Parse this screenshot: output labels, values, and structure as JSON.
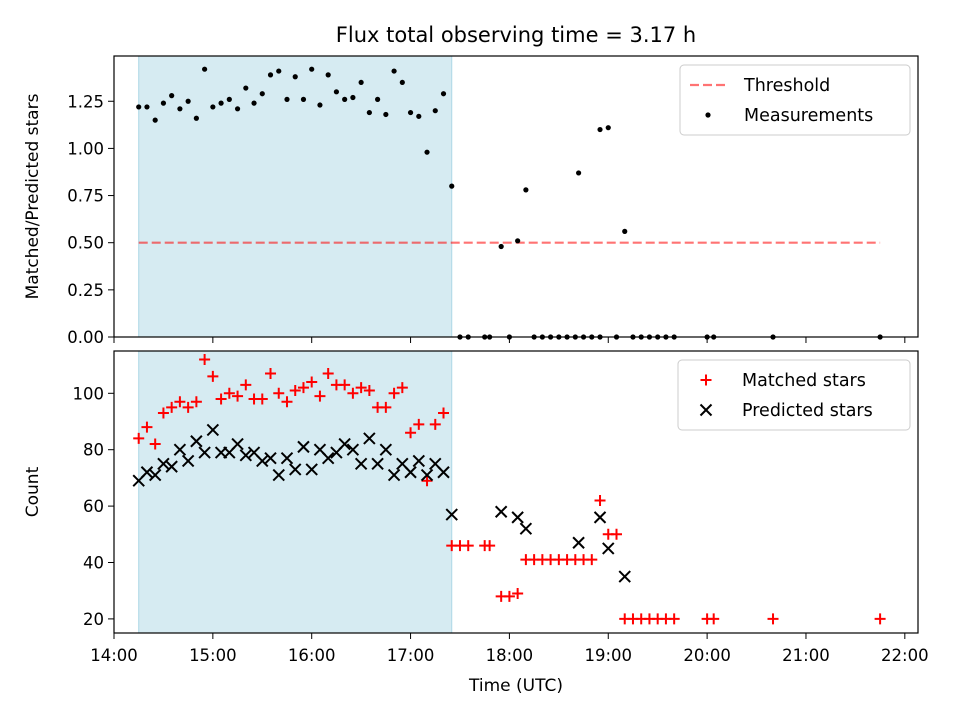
{
  "title": "Flux total observing time = 3.17 h",
  "colors": {
    "shade": "#add8e6",
    "threshold": "#ff0000",
    "matched": "#ff0000",
    "predicted": "#000000",
    "measurements": "#000000"
  },
  "chart_data": [
    {
      "type": "scatter",
      "panel": "top",
      "ylabel": "Matched/Predicted stars",
      "xlim": [
        "14:00",
        "22:08"
      ],
      "ylim": [
        0,
        1.49
      ],
      "yticks": [
        "0.00",
        "0.25",
        "0.50",
        "0.75",
        "1.00",
        "1.25"
      ],
      "grid": false,
      "legend_position": "upper right",
      "shaded_span": {
        "x_from": "14:15",
        "x_to": "17:25"
      },
      "threshold": {
        "name": "Threshold",
        "y": 0.5,
        "x_from": "14:15",
        "x_to": "21:45",
        "style": "dashed"
      },
      "series": [
        {
          "name": "Measurements",
          "marker": "dot",
          "points": [
            [
              "14:15",
              1.22
            ],
            [
              "14:20",
              1.22
            ],
            [
              "14:25",
              1.15
            ],
            [
              "14:30",
              1.24
            ],
            [
              "14:35",
              1.28
            ],
            [
              "14:40",
              1.21
            ],
            [
              "14:45",
              1.25
            ],
            [
              "14:50",
              1.16
            ],
            [
              "14:55",
              1.42
            ],
            [
              "15:00",
              1.22
            ],
            [
              "15:05",
              1.24
            ],
            [
              "15:10",
              1.26
            ],
            [
              "15:15",
              1.21
            ],
            [
              "15:20",
              1.32
            ],
            [
              "15:25",
              1.24
            ],
            [
              "15:30",
              1.29
            ],
            [
              "15:35",
              1.39
            ],
            [
              "15:40",
              1.41
            ],
            [
              "15:45",
              1.26
            ],
            [
              "15:50",
              1.38
            ],
            [
              "15:55",
              1.26
            ],
            [
              "16:00",
              1.42
            ],
            [
              "16:05",
              1.23
            ],
            [
              "16:10",
              1.39
            ],
            [
              "16:15",
              1.3
            ],
            [
              "16:20",
              1.26
            ],
            [
              "16:25",
              1.27
            ],
            [
              "16:30",
              1.35
            ],
            [
              "16:35",
              1.19
            ],
            [
              "16:40",
              1.26
            ],
            [
              "16:45",
              1.18
            ],
            [
              "16:50",
              1.41
            ],
            [
              "16:55",
              1.35
            ],
            [
              "17:00",
              1.19
            ],
            [
              "17:05",
              1.17
            ],
            [
              "17:10",
              0.98
            ],
            [
              "17:15",
              1.2
            ],
            [
              "17:20",
              1.29
            ],
            [
              "17:25",
              0.8
            ],
            [
              "17:30",
              0.0
            ],
            [
              "17:35",
              0.0
            ],
            [
              "17:45",
              0.0
            ],
            [
              "17:48",
              0.0
            ],
            [
              "17:55",
              0.48
            ],
            [
              "18:00",
              0.0
            ],
            [
              "18:05",
              0.51
            ],
            [
              "18:10",
              0.78
            ],
            [
              "18:15",
              0.0
            ],
            [
              "18:20",
              0.0
            ],
            [
              "18:25",
              0.0
            ],
            [
              "18:30",
              0.0
            ],
            [
              "18:35",
              0.0
            ],
            [
              "18:40",
              0.0
            ],
            [
              "18:42",
              0.87
            ],
            [
              "18:45",
              0.0
            ],
            [
              "18:50",
              0.0
            ],
            [
              "18:55",
              0.0
            ],
            [
              "18:55",
              1.1
            ],
            [
              "19:00",
              1.11
            ],
            [
              "19:05",
              0.0
            ],
            [
              "19:10",
              0.56
            ],
            [
              "19:15",
              0.0
            ],
            [
              "19:20",
              0.0
            ],
            [
              "19:25",
              0.0
            ],
            [
              "19:30",
              0.0
            ],
            [
              "19:35",
              0.0
            ],
            [
              "19:40",
              0.0
            ],
            [
              "20:00",
              0.0
            ],
            [
              "20:04",
              0.0
            ],
            [
              "20:40",
              0.0
            ],
            [
              "21:45",
              0.0
            ]
          ]
        }
      ]
    },
    {
      "type": "scatter",
      "panel": "bottom",
      "xlabel": "Time (UTC)",
      "ylabel": "Count",
      "xlim": [
        "14:00",
        "22:08"
      ],
      "ylim": [
        15,
        115
      ],
      "xticks": [
        "14:00",
        "15:00",
        "16:00",
        "17:00",
        "18:00",
        "19:00",
        "20:00",
        "21:00",
        "22:00"
      ],
      "yticks": [
        "20",
        "40",
        "60",
        "80",
        "100"
      ],
      "grid": false,
      "legend_position": "upper right",
      "shaded_span": {
        "x_from": "14:15",
        "x_to": "17:25"
      },
      "series": [
        {
          "name": "Matched stars",
          "marker": "plus",
          "points": [
            [
              "14:15",
              84
            ],
            [
              "14:20",
              88
            ],
            [
              "14:25",
              82
            ],
            [
              "14:30",
              93
            ],
            [
              "14:35",
              95
            ],
            [
              "14:40",
              97
            ],
            [
              "14:45",
              95
            ],
            [
              "14:50",
              97
            ],
            [
              "14:55",
              112
            ],
            [
              "15:00",
              106
            ],
            [
              "15:05",
              98
            ],
            [
              "15:10",
              100
            ],
            [
              "15:15",
              99
            ],
            [
              "15:20",
              103
            ],
            [
              "15:25",
              98
            ],
            [
              "15:30",
              98
            ],
            [
              "15:35",
              107
            ],
            [
              "15:40",
              100
            ],
            [
              "15:45",
              97
            ],
            [
              "15:50",
              101
            ],
            [
              "15:55",
              102
            ],
            [
              "16:00",
              104
            ],
            [
              "16:05",
              99
            ],
            [
              "16:10",
              107
            ],
            [
              "16:15",
              103
            ],
            [
              "16:20",
              103
            ],
            [
              "16:25",
              100
            ],
            [
              "16:30",
              102
            ],
            [
              "16:35",
              101
            ],
            [
              "16:40",
              95
            ],
            [
              "16:45",
              95
            ],
            [
              "16:50",
              100
            ],
            [
              "16:55",
              102
            ],
            [
              "17:00",
              86
            ],
            [
              "17:05",
              89
            ],
            [
              "17:10",
              69
            ],
            [
              "17:15",
              89
            ],
            [
              "17:20",
              93
            ],
            [
              "17:25",
              46
            ],
            [
              "17:30",
              46
            ],
            [
              "17:35",
              46
            ],
            [
              "17:45",
              46
            ],
            [
              "17:48",
              46
            ],
            [
              "17:55",
              28
            ],
            [
              "18:00",
              28
            ],
            [
              "18:05",
              29
            ],
            [
              "18:10",
              41
            ],
            [
              "18:15",
              41
            ],
            [
              "18:20",
              41
            ],
            [
              "18:25",
              41
            ],
            [
              "18:30",
              41
            ],
            [
              "18:35",
              41
            ],
            [
              "18:40",
              41
            ],
            [
              "18:45",
              41
            ],
            [
              "18:50",
              41
            ],
            [
              "18:55",
              62
            ],
            [
              "19:00",
              50
            ],
            [
              "19:05",
              50
            ],
            [
              "19:10",
              20
            ],
            [
              "19:15",
              20
            ],
            [
              "19:20",
              20
            ],
            [
              "19:25",
              20
            ],
            [
              "19:30",
              20
            ],
            [
              "19:35",
              20
            ],
            [
              "19:40",
              20
            ],
            [
              "20:00",
              20
            ],
            [
              "20:04",
              20
            ],
            [
              "20:40",
              20
            ],
            [
              "21:45",
              20
            ]
          ]
        },
        {
          "name": "Predicted stars",
          "marker": "x",
          "points": [
            [
              "14:15",
              69
            ],
            [
              "14:20",
              72
            ],
            [
              "14:25",
              71
            ],
            [
              "14:30",
              75
            ],
            [
              "14:35",
              74
            ],
            [
              "14:40",
              80
            ],
            [
              "14:45",
              76
            ],
            [
              "14:50",
              83
            ],
            [
              "14:55",
              79
            ],
            [
              "15:00",
              87
            ],
            [
              "15:05",
              79
            ],
            [
              "15:10",
              79
            ],
            [
              "15:15",
              82
            ],
            [
              "15:20",
              78
            ],
            [
              "15:25",
              79
            ],
            [
              "15:30",
              76
            ],
            [
              "15:35",
              77
            ],
            [
              "15:40",
              71
            ],
            [
              "15:45",
              77
            ],
            [
              "15:50",
              73
            ],
            [
              "15:55",
              81
            ],
            [
              "16:00",
              73
            ],
            [
              "16:05",
              80
            ],
            [
              "16:10",
              77
            ],
            [
              "16:15",
              79
            ],
            [
              "16:20",
              82
            ],
            [
              "16:25",
              80
            ],
            [
              "16:30",
              75
            ],
            [
              "16:35",
              84
            ],
            [
              "16:40",
              75
            ],
            [
              "16:45",
              80
            ],
            [
              "16:50",
              71
            ],
            [
              "16:55",
              75
            ],
            [
              "17:00",
              72
            ],
            [
              "17:05",
              76
            ],
            [
              "17:10",
              71
            ],
            [
              "17:15",
              75
            ],
            [
              "17:20",
              72
            ],
            [
              "17:25",
              57
            ],
            [
              "17:55",
              58
            ],
            [
              "18:05",
              56
            ],
            [
              "18:10",
              52
            ],
            [
              "18:42",
              47
            ],
            [
              "18:55",
              56
            ],
            [
              "19:00",
              45
            ],
            [
              "19:10",
              35
            ]
          ]
        }
      ]
    }
  ]
}
